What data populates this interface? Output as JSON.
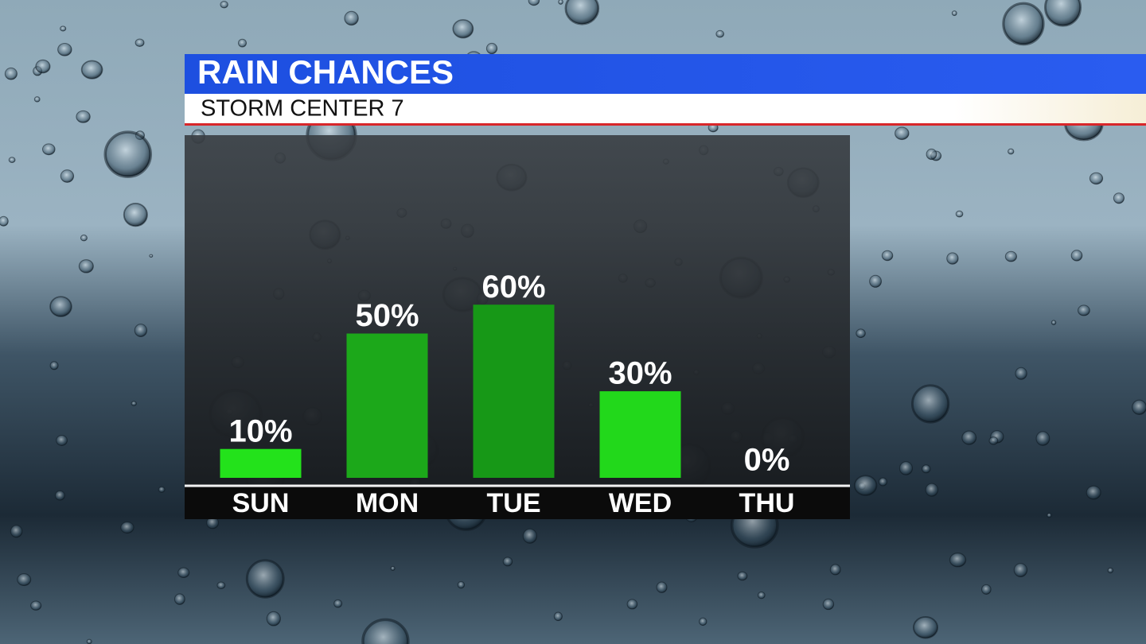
{
  "chart_data": {
    "type": "bar",
    "title": "RAIN CHANCES",
    "subtitle": "STORM CENTER 7",
    "categories": [
      "SUN",
      "MON",
      "TUE",
      "WED",
      "THU"
    ],
    "values": [
      10,
      50,
      60,
      30,
      0
    ],
    "value_labels": [
      "10%",
      "50%",
      "60%",
      "30%",
      "0%"
    ],
    "colors": [
      "#23e21b",
      "#1ca81a",
      "#179817",
      "#22d81b",
      "#22d81b"
    ],
    "ylim": [
      0,
      100
    ]
  }
}
